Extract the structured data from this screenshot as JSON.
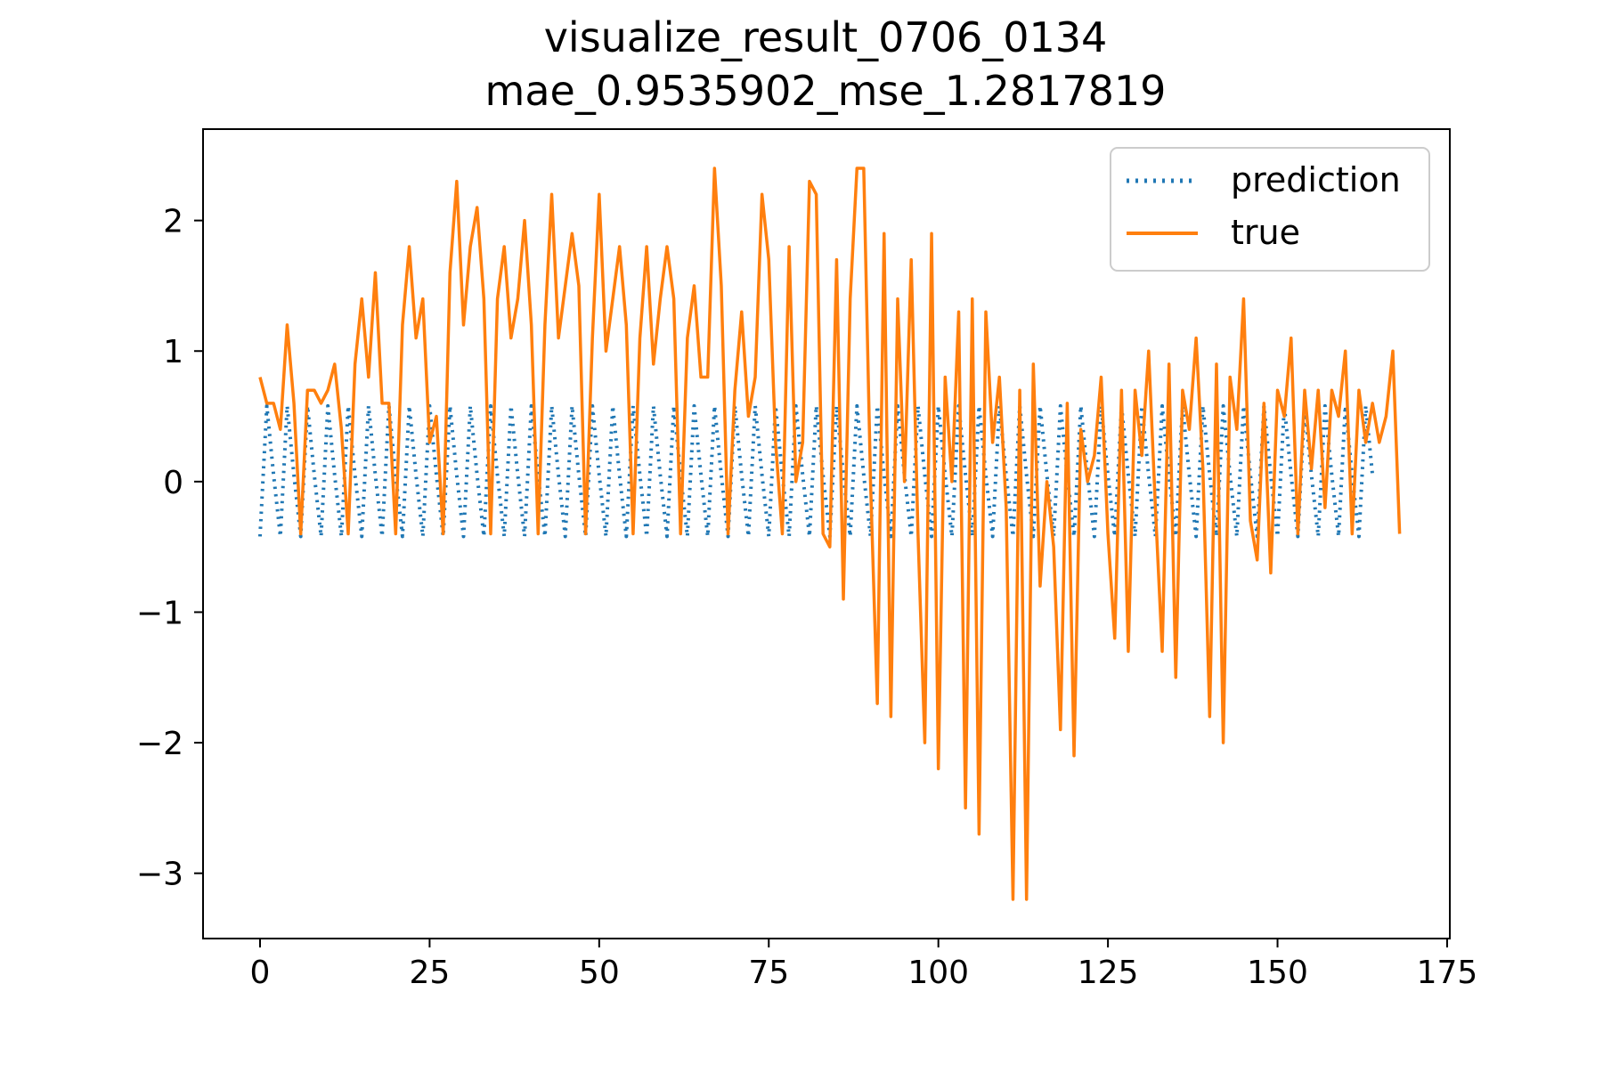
{
  "chart_data": {
    "type": "line",
    "title": "visualize_result_0706_0134",
    "subtitle": "mae_0.9535902_mse_1.2817819",
    "xlabel": "",
    "ylabel": "",
    "xlim": [
      -8.4,
      175.4
    ],
    "ylim": [
      -3.5,
      2.7
    ],
    "xticks": [
      0,
      25,
      50,
      75,
      100,
      125,
      150,
      175
    ],
    "yticks": [
      2,
      1,
      0,
      -1,
      -2,
      -3
    ],
    "xtick_labels": [
      "0",
      "25",
      "50",
      "75",
      "100",
      "125",
      "150",
      "175"
    ],
    "ytick_labels": [
      "2",
      "1",
      "0",
      "−1",
      "−2",
      "−3"
    ],
    "grid": false,
    "legend_position": "top-right",
    "series": [
      {
        "name": "prediction",
        "color": "#1f77b4",
        "style": "dotted",
        "values": [
          -0.42,
          0.58,
          0.05,
          -0.42,
          0.58,
          0.05,
          -0.42,
          0.58,
          0.05,
          -0.42,
          0.58,
          0.05,
          -0.42,
          0.58,
          0.05,
          -0.42,
          0.58,
          0.05,
          -0.42,
          0.58,
          0.05,
          -0.42,
          0.58,
          0.05,
          -0.42,
          0.58,
          0.05,
          -0.42,
          0.58,
          0.05,
          -0.42,
          0.58,
          0.05,
          -0.42,
          0.58,
          0.05,
          -0.42,
          0.58,
          0.05,
          -0.42,
          0.58,
          0.05,
          -0.42,
          0.58,
          0.05,
          -0.42,
          0.58,
          0.05,
          -0.42,
          0.58,
          0.05,
          -0.42,
          0.58,
          0.05,
          -0.42,
          0.58,
          0.05,
          -0.42,
          0.58,
          0.05,
          -0.42,
          0.58,
          0.05,
          -0.42,
          0.58,
          0.05,
          -0.42,
          0.58,
          0.05,
          -0.42,
          0.58,
          0.05,
          -0.42,
          0.58,
          0.05,
          -0.42,
          0.58,
          0.05,
          -0.42,
          0.58,
          0.05,
          -0.42,
          0.58,
          0.05,
          -0.42,
          0.58,
          0.05,
          -0.42,
          0.58,
          0.05,
          -0.42,
          0.58,
          0.05,
          -0.42,
          0.58,
          0.05,
          -0.42,
          0.58,
          0.05,
          -0.42,
          0.58,
          0.05,
          -0.42,
          0.58,
          0.05,
          -0.42,
          0.58,
          0.05,
          -0.42,
          0.58,
          0.05,
          -0.42,
          0.58,
          0.05,
          -0.42,
          0.58,
          0.05,
          -0.42,
          0.58,
          0.05,
          -0.42,
          0.58,
          0.05,
          -0.42,
          0.58,
          0.05,
          -0.42,
          0.58,
          0.05,
          -0.42,
          0.58,
          0.05,
          -0.42,
          0.58,
          0.05,
          -0.42,
          0.58,
          0.05,
          -0.42,
          0.58,
          0.05,
          -0.42,
          0.58,
          0.05,
          -0.42,
          0.58,
          0.05,
          -0.42,
          0.58,
          0.05,
          -0.42,
          0.58,
          0.05,
          -0.42,
          0.58,
          0.05,
          -0.42,
          0.58,
          0.05,
          -0.42,
          0.58,
          0.05,
          -0.42,
          0.58,
          0.05
        ]
      },
      {
        "name": "true",
        "color": "#ff7f0e",
        "style": "solid",
        "values": [
          0.8,
          0.6,
          0.6,
          0.4,
          1.2,
          0.6,
          -0.4,
          0.7,
          0.7,
          0.6,
          0.7,
          0.9,
          0.4,
          -0.4,
          0.9,
          1.4,
          0.8,
          1.6,
          0.6,
          0.6,
          -0.4,
          1.2,
          1.8,
          1.1,
          1.4,
          0.3,
          0.5,
          -0.4,
          1.6,
          2.3,
          1.2,
          1.8,
          2.1,
          1.4,
          -0.4,
          1.4,
          1.8,
          1.1,
          1.4,
          2.0,
          1.2,
          -0.4,
          1.2,
          2.2,
          1.1,
          1.5,
          1.9,
          1.5,
          -0.4,
          1.1,
          2.2,
          1.0,
          1.4,
          1.8,
          1.2,
          -0.4,
          1.1,
          1.8,
          0.9,
          1.4,
          1.8,
          1.4,
          -0.4,
          1.1,
          1.5,
          0.8,
          0.8,
          2.4,
          1.5,
          -0.4,
          0.7,
          1.3,
          0.5,
          0.8,
          2.2,
          1.7,
          0.3,
          -0.4,
          1.8,
          0.0,
          0.3,
          2.3,
          2.2,
          -0.4,
          -0.5,
          1.7,
          -0.9,
          1.4,
          2.4,
          2.4,
          0.0,
          -1.7,
          1.9,
          -1.8,
          1.4,
          0.0,
          1.7,
          -0.4,
          -2.0,
          1.9,
          -2.2,
          0.8,
          0.0,
          1.3,
          -2.5,
          1.4,
          -2.7,
          1.3,
          0.3,
          0.8,
          -0.2,
          -3.2,
          0.7,
          -3.2,
          0.9,
          -0.8,
          0.0,
          -0.5,
          -1.9,
          0.6,
          -2.1,
          0.4,
          0.0,
          0.2,
          0.8,
          -0.4,
          -1.2,
          0.7,
          -1.3,
          0.7,
          0.2,
          1.0,
          -0.2,
          -1.3,
          0.9,
          -1.5,
          0.7,
          0.4,
          1.1,
          0.1,
          -1.8,
          0.9,
          -2.0,
          0.8,
          0.4,
          1.4,
          -0.3,
          -0.6,
          0.6,
          -0.7,
          0.7,
          0.5,
          1.1,
          -0.4,
          0.7,
          0.1,
          0.7,
          -0.2,
          0.7,
          0.5,
          1.0,
          -0.4,
          0.7,
          0.3,
          0.6,
          0.3,
          0.5,
          1.0,
          -0.4
        ]
      }
    ]
  }
}
